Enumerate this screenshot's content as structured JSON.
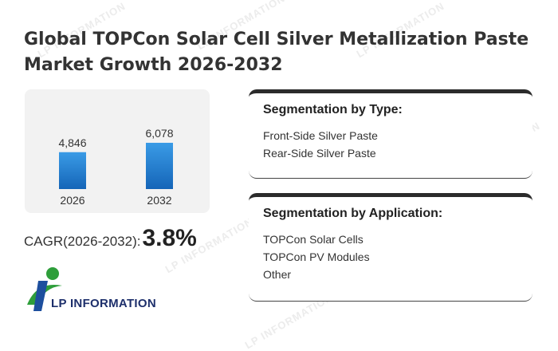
{
  "header": {
    "title": "Global TOPCon Solar Cell Silver Metallization Paste Market Growth 2026-2032"
  },
  "chart_data": {
    "type": "bar",
    "categories": [
      "2026",
      "2032"
    ],
    "values": [
      4846,
      6078
    ],
    "value_labels": [
      "4,846",
      "6,078"
    ],
    "ylim": [
      0,
      6078
    ],
    "bar_color_top": "#3a9be6",
    "bar_color_bottom": "#1565b8"
  },
  "cagr": {
    "label": "CAGR(2026-2032):",
    "value": "3.8%"
  },
  "segmentation_type": {
    "title": "Segmentation by Type:",
    "items": [
      "Front-Side Silver Paste",
      "Rear-Side Silver Paste"
    ]
  },
  "segmentation_application": {
    "title": "Segmentation by Application:",
    "items": [
      "TOPCon Solar Cells",
      "TOPCon PV Modules",
      "Other"
    ]
  },
  "logo": {
    "text": "LP INFORMATION",
    "icon": "lp-information-logo-icon"
  },
  "watermark": {
    "text": "LP INFORMATION"
  }
}
